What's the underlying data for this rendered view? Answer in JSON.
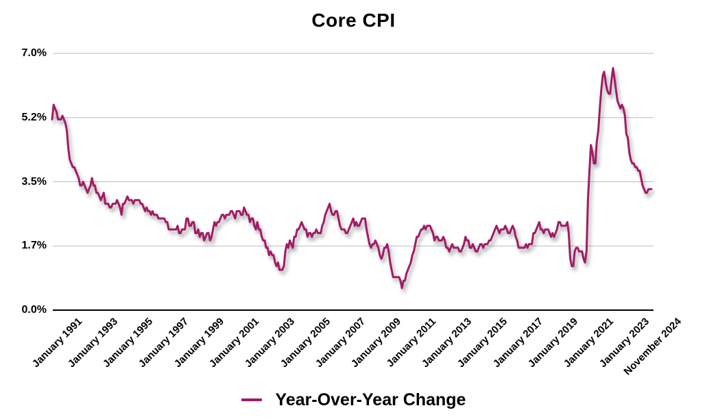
{
  "chart_data": {
    "type": "line",
    "title": "Core CPI",
    "xlabel": "",
    "ylabel": "",
    "grid": "horizontal",
    "legend_position": "bottom-center",
    "colors": {
      "line": "#A01A66",
      "gridline": "#BBBBBB",
      "axis": "#000000",
      "text": "#000000",
      "background": "#FFFFFF"
    },
    "y_axis": {
      "range": [
        0,
        7
      ],
      "ticks": [
        {
          "label": "7.0%",
          "value": 7.0
        },
        {
          "label": "5.2%",
          "value": 5.25
        },
        {
          "label": "3.5%",
          "value": 3.5
        },
        {
          "label": "1.7%",
          "value": 1.75
        },
        {
          "label": "0.0%",
          "value": 0.0
        }
      ]
    },
    "x_axis": {
      "start": "January 1991",
      "end": "November 2024",
      "frequency": "monthly",
      "ticks": [
        {
          "label": "January 1991",
          "month_index": 0
        },
        {
          "label": "January 1993",
          "month_index": 24
        },
        {
          "label": "January 1995",
          "month_index": 48
        },
        {
          "label": "January 1997",
          "month_index": 72
        },
        {
          "label": "January 1999",
          "month_index": 96
        },
        {
          "label": "January 2001",
          "month_index": 120
        },
        {
          "label": "January 2003",
          "month_index": 144
        },
        {
          "label": "January 2005",
          "month_index": 168
        },
        {
          "label": "January 2007",
          "month_index": 192
        },
        {
          "label": "January 2009",
          "month_index": 216
        },
        {
          "label": "January 2011",
          "month_index": 240
        },
        {
          "label": "January 2013",
          "month_index": 264
        },
        {
          "label": "January 2015",
          "month_index": 288
        },
        {
          "label": "January 2017",
          "month_index": 312
        },
        {
          "label": "January 2019",
          "month_index": 336
        },
        {
          "label": "January 2021",
          "month_index": 360
        },
        {
          "label": "January 2023",
          "month_index": 384
        },
        {
          "label": "November 2024",
          "month_index": 406
        }
      ]
    },
    "series": [
      {
        "name": "Year-Over-Year Change",
        "color": "#A01A66",
        "start": "1991-01",
        "end": "2024-11",
        "unit": "percent",
        "values": [
          5.2,
          5.6,
          5.5,
          5.4,
          5.2,
          5.2,
          5.2,
          5.3,
          5.2,
          5.1,
          4.9,
          4.4,
          4.1,
          4.0,
          3.9,
          3.9,
          3.8,
          3.7,
          3.6,
          3.4,
          3.4,
          3.5,
          3.4,
          3.3,
          3.2,
          3.3,
          3.4,
          3.6,
          3.4,
          3.4,
          3.2,
          3.2,
          3.1,
          3.0,
          3.1,
          3.2,
          2.9,
          2.9,
          2.9,
          2.8,
          2.8,
          2.9,
          2.9,
          2.9,
          3.0,
          2.9,
          2.8,
          2.6,
          2.9,
          2.9,
          3.0,
          3.1,
          3.0,
          3.0,
          3.0,
          2.9,
          3.0,
          3.0,
          3.0,
          3.0,
          2.9,
          2.9,
          2.8,
          2.7,
          2.8,
          2.7,
          2.7,
          2.6,
          2.7,
          2.6,
          2.6,
          2.6,
          2.5,
          2.5,
          2.5,
          2.5,
          2.5,
          2.4,
          2.4,
          2.2,
          2.2,
          2.2,
          2.2,
          2.2,
          2.2,
          2.3,
          2.1,
          2.1,
          2.2,
          2.2,
          2.2,
          2.5,
          2.5,
          2.3,
          2.3,
          2.4,
          2.4,
          2.1,
          2.1,
          2.2,
          2.0,
          2.1,
          2.1,
          1.9,
          2.0,
          2.1,
          2.1,
          1.9,
          2.0,
          2.2,
          2.4,
          2.3,
          2.4,
          2.4,
          2.5,
          2.6,
          2.6,
          2.5,
          2.6,
          2.6,
          2.6,
          2.7,
          2.7,
          2.6,
          2.5,
          2.7,
          2.7,
          2.7,
          2.6,
          2.6,
          2.8,
          2.7,
          2.6,
          2.6,
          2.4,
          2.5,
          2.5,
          2.3,
          2.2,
          2.4,
          2.2,
          2.2,
          2.0,
          1.9,
          1.9,
          1.7,
          1.7,
          1.5,
          1.6,
          1.5,
          1.5,
          1.3,
          1.2,
          1.3,
          1.1,
          1.1,
          1.1,
          1.2,
          1.6,
          1.8,
          1.7,
          1.9,
          1.8,
          1.7,
          2.0,
          2.0,
          2.2,
          2.2,
          2.3,
          2.4,
          2.3,
          2.2,
          2.2,
          2.0,
          2.1,
          2.1,
          2.0,
          2.1,
          2.1,
          2.2,
          2.1,
          2.1,
          2.1,
          2.3,
          2.4,
          2.6,
          2.7,
          2.8,
          2.9,
          2.7,
          2.6,
          2.6,
          2.7,
          2.7,
          2.5,
          2.3,
          2.2,
          2.2,
          2.2,
          2.1,
          2.1,
          2.2,
          2.3,
          2.4,
          2.5,
          2.3,
          2.4,
          2.3,
          2.3,
          2.4,
          2.5,
          2.5,
          2.5,
          2.2,
          2.0,
          1.8,
          1.7,
          1.8,
          1.8,
          1.9,
          1.8,
          1.7,
          1.5,
          1.4,
          1.5,
          1.7,
          1.7,
          1.8,
          1.6,
          1.3,
          1.1,
          0.9,
          0.9,
          0.9,
          0.9,
          0.9,
          0.8,
          0.6,
          0.8,
          0.8,
          1.0,
          1.1,
          1.2,
          1.3,
          1.5,
          1.6,
          1.8,
          2.0,
          2.0,
          2.1,
          2.2,
          2.2,
          2.3,
          2.2,
          2.3,
          2.3,
          2.3,
          2.2,
          2.1,
          1.9,
          2.0,
          2.0,
          1.9,
          1.9,
          1.9,
          2.0,
          1.9,
          1.7,
          1.7,
          1.6,
          1.7,
          1.8,
          1.7,
          1.7,
          1.7,
          1.7,
          1.6,
          1.6,
          1.7,
          1.8,
          2.0,
          1.9,
          1.9,
          1.7,
          1.7,
          1.8,
          1.7,
          1.6,
          1.6,
          1.7,
          1.8,
          1.8,
          1.7,
          1.8,
          1.8,
          1.8,
          1.9,
          1.9,
          2.0,
          2.1,
          2.2,
          2.3,
          2.2,
          2.1,
          2.2,
          2.2,
          2.2,
          2.3,
          2.2,
          2.1,
          2.1,
          2.2,
          2.3,
          2.2,
          2.0,
          1.9,
          1.7,
          1.7,
          1.7,
          1.7,
          1.7,
          1.8,
          1.7,
          1.8,
          1.8,
          1.8,
          2.1,
          2.1,
          2.2,
          2.3,
          2.4,
          2.2,
          2.2,
          2.1,
          2.2,
          2.2,
          2.2,
          2.1,
          2.0,
          2.1,
          2.0,
          2.1,
          2.2,
          2.4,
          2.4,
          2.3,
          2.3,
          2.3,
          2.3,
          2.4,
          2.1,
          1.4,
          1.2,
          1.2,
          1.6,
          1.7,
          1.7,
          1.6,
          1.6,
          1.6,
          1.4,
          1.3,
          1.6,
          3.0,
          3.8,
          4.5,
          4.3,
          4.0,
          4.0,
          4.6,
          4.9,
          5.5,
          6.0,
          6.4,
          6.5,
          6.2,
          6.0,
          5.9,
          5.9,
          6.3,
          6.6,
          6.3,
          6.0,
          5.7,
          5.6,
          5.5,
          5.6,
          5.5,
          5.3,
          4.8,
          4.7,
          4.3,
          4.1,
          4.0,
          4.0,
          3.9,
          3.9,
          3.8,
          3.8,
          3.6,
          3.4,
          3.3,
          3.2,
          3.2,
          3.3,
          3.3,
          3.3
        ]
      }
    ]
  }
}
